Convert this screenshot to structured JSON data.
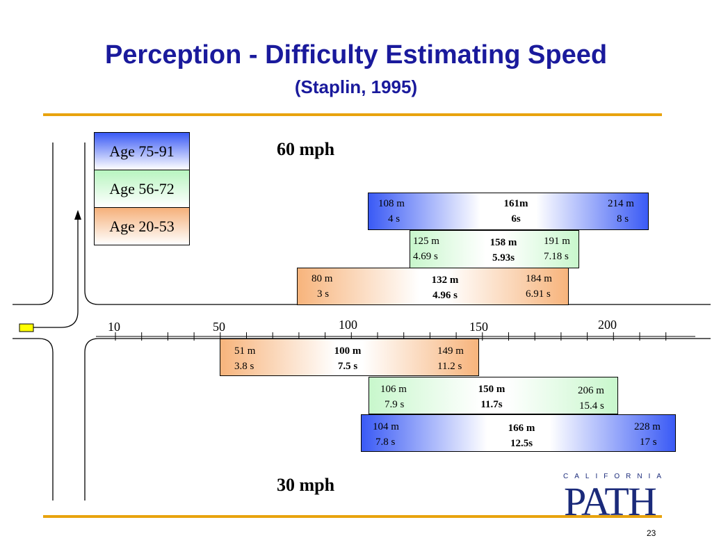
{
  "title": "Perception - Difficulty Estimating Speed",
  "subtitle": "(Staplin, 1995)",
  "legend": [
    {
      "label": "Age 75-91",
      "color": "#3a5af5"
    },
    {
      "label": "Age 56-72",
      "color": "#b8f5c0"
    },
    {
      "label": "Age 20-53",
      "color": "#f5b07a"
    }
  ],
  "speed_top": "60 mph",
  "speed_bottom": "30 mph",
  "axis_labels": [
    "10",
    "50",
    "100",
    "150",
    "200"
  ],
  "boxes_60": [
    {
      "left_d": "108 m",
      "left_t": "4 s",
      "mid_d": "161m",
      "mid_t": "6s",
      "right_d": "214 m",
      "right_t": "8 s"
    },
    {
      "left_d": "125 m",
      "left_t": "4.69 s",
      "mid_d": "158 m",
      "mid_t": "5.93s",
      "right_d": "191 m",
      "right_t": "7.18 s"
    },
    {
      "left_d": "80 m",
      "left_t": "3 s",
      "mid_d": "132 m",
      "mid_t": "4.96 s",
      "right_d": "184 m",
      "right_t": "6.91 s"
    }
  ],
  "boxes_30": [
    {
      "left_d": "51 m",
      "left_t": "3.8 s",
      "mid_d": "100 m",
      "mid_t": "7.5 s",
      "right_d": "149 m",
      "right_t": "11.2 s"
    },
    {
      "left_d": "106 m",
      "left_t": "7.9 s",
      "mid_d": "150 m",
      "mid_t": "11.7s",
      "right_d": "206 m",
      "right_t": "15.4 s"
    },
    {
      "left_d": "104 m",
      "left_t": "7.8 s",
      "mid_d": "166 m",
      "mid_t": "12.5s",
      "right_d": "228 m",
      "right_t": "17 s"
    }
  ],
  "logo": {
    "top": "CALIFORNIA",
    "main": "PATH"
  },
  "page_number": "23"
}
